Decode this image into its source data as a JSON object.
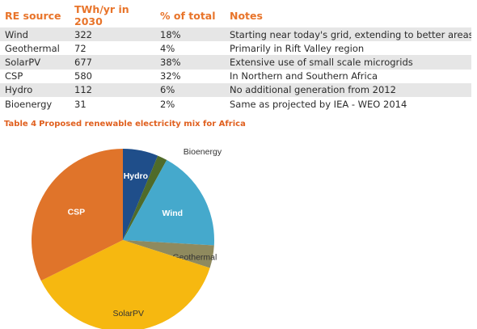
{
  "table": {
    "headers": [
      "RE source",
      "TWh/yr in 2030",
      "% of total",
      "Notes"
    ],
    "rows": [
      [
        "Wind",
        "322",
        "18%",
        "Starting near today's grid, extending to better areas"
      ],
      [
        "Geothermal",
        "72",
        "4%",
        "Primarily in Rift Valley region"
      ],
      [
        "SolarPV",
        "677",
        "38%",
        "Extensive use of small scale microgrids"
      ],
      [
        "CSP",
        "580",
        "32%",
        "In Northern and Southern Africa"
      ],
      [
        "Hydro",
        "112",
        "6%",
        "No additional generation from 2012"
      ],
      [
        "Bioenergy",
        "31",
        "2%",
        "Same as projected by IEA - WEO 2014"
      ]
    ]
  },
  "caption": {
    "number": "Table 4",
    "text": "Proposed renewable electricity mix for Africa"
  },
  "chart_data": {
    "type": "pie",
    "title": "",
    "start": "12 o'clock, clockwise",
    "slices": [
      {
        "label": "Hydro",
        "value": 112,
        "color": "#1f4e8a",
        "label_color": "#ffffff",
        "bold": true
      },
      {
        "label": "Bioenergy",
        "value": 31,
        "color": "#4f6b2a",
        "label_color": "#333333",
        "bold": false
      },
      {
        "label": "Wind",
        "value": 322,
        "color": "#45a9cc",
        "label_color": "#ffffff",
        "bold": true
      },
      {
        "label": "Geothermal",
        "value": 72,
        "color": "#8f8a5e",
        "label_color": "#333333",
        "bold": false
      },
      {
        "label": "SolarPV",
        "value": 677,
        "color": "#f6b810",
        "label_color": "#333333",
        "bold": false
      },
      {
        "label": "CSP",
        "value": 580,
        "color": "#e0742a",
        "label_color": "#ffffff",
        "bold": true
      }
    ]
  }
}
